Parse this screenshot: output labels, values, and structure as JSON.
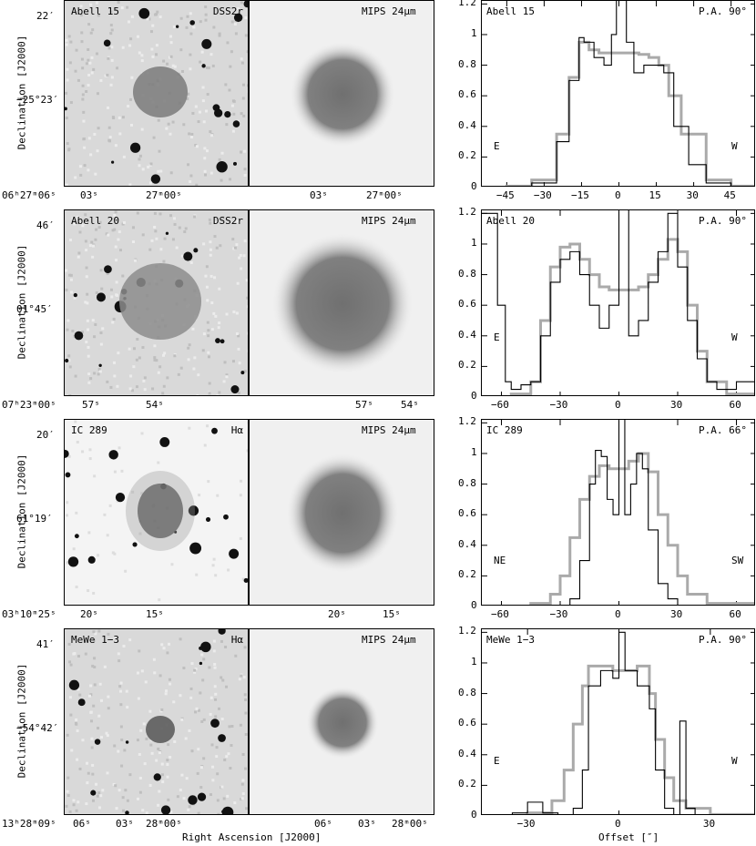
{
  "rows": [
    {
      "name": "Abell 15",
      "left_band": "DSS2r",
      "mid_band": "MIPS 24μm",
      "dec_ticks": [
        "22′",
        "−25°23′"
      ],
      "ra_ticks_left": [
        "06ʰ27ᵐ06ˢ",
        "03ˢ",
        "27ᵐ00ˢ"
      ],
      "ra_ticks_mid": [
        "03ˢ",
        "27ᵐ00ˢ"
      ],
      "pa": "P.A. 90°",
      "side_left": "E",
      "side_right": "W",
      "xticks": [
        "−45",
        "−30",
        "−15",
        "0",
        "15",
        "30",
        "45"
      ]
    },
    {
      "name": "Abell 20",
      "left_band": "DSS2r",
      "mid_band": "MIPS 24μm",
      "dec_ticks": [
        "46′",
        "01°45′"
      ],
      "ra_ticks_left": [
        "07ʰ23ᵐ00ˢ",
        "57ˢ",
        "54ˢ"
      ],
      "ra_ticks_mid": [
        "57ˢ",
        "54ˢ"
      ],
      "pa": "P.A. 90°",
      "side_left": "E",
      "side_right": "W",
      "xticks": [
        "−60",
        "−30",
        "0",
        "30",
        "60"
      ]
    },
    {
      "name": "IC 289",
      "left_band": "Hα",
      "mid_band": "MIPS 24μm",
      "dec_ticks": [
        "20′",
        "61°19′"
      ],
      "ra_ticks_left": [
        "03ʰ10ᵐ25ˢ",
        "20ˢ",
        "15ˢ"
      ],
      "ra_ticks_mid": [
        "20ˢ",
        "15ˢ"
      ],
      "pa": "P.A. 66°",
      "side_left": "NE",
      "side_right": "SW",
      "xticks": [
        "−60",
        "−30",
        "0",
        "30",
        "60"
      ]
    },
    {
      "name": "MeWe 1−3",
      "left_band": "Hα",
      "mid_band": "MIPS 24μm",
      "dec_ticks": [
        "41′",
        "−54°42′"
      ],
      "ra_ticks_left": [
        "13ʰ28ᵐ09ˢ",
        "06ˢ",
        "03ˢ",
        "28ᵐ00ˢ"
      ],
      "ra_ticks_mid": [
        "06ˢ",
        "03ˢ",
        "28ᵐ00ˢ"
      ],
      "pa": "P.A. 90°",
      "side_left": "E",
      "side_right": "W",
      "xticks": [
        "−30",
        "0",
        "30"
      ]
    }
  ],
  "labels": {
    "declination": "Declination [J2000]",
    "right_ascension": "Right Ascension [J2000]",
    "offset": "Offset [″]",
    "yticks": [
      "0",
      "0.2",
      "0.4",
      "0.6",
      "0.8",
      "1",
      "1.2"
    ]
  },
  "chart_data": [
    {
      "type": "line",
      "title": "Abell 15",
      "xlim": [
        -55,
        55
      ],
      "ylim": [
        0,
        1.22
      ],
      "series": [
        {
          "values_x": [
            -55,
            -45,
            -35,
            -25,
            -20,
            -16,
            -12,
            -8,
            -4,
            0,
            4,
            8,
            12,
            16,
            20,
            25,
            35,
            45,
            55
          ],
          "values_y": [
            0,
            0.01,
            0.05,
            0.35,
            0.72,
            0.95,
            0.9,
            0.88,
            0.88,
            0.88,
            0.88,
            0.87,
            0.85,
            0.8,
            0.6,
            0.35,
            0.05,
            0.01,
            0
          ]
        },
        {
          "values_x": [
            -55,
            -45,
            -35,
            -25,
            -20,
            -16,
            -14,
            -10,
            -6,
            -3,
            -1,
            0,
            1,
            3,
            6,
            10,
            14,
            18,
            22,
            28,
            35,
            45,
            55
          ],
          "values_y": [
            0,
            0,
            0.03,
            0.3,
            0.7,
            0.98,
            0.95,
            0.85,
            0.8,
            1.0,
            1.25,
            1.25,
            1.25,
            0.95,
            0.75,
            0.8,
            0.8,
            0.75,
            0.4,
            0.15,
            0.03,
            0,
            0
          ]
        }
      ]
    },
    {
      "type": "line",
      "title": "Abell 20",
      "xlim": [
        -70,
        70
      ],
      "ylim": [
        0,
        1.22
      ],
      "series": [
        {
          "values_x": [
            -70,
            -55,
            -45,
            -40,
            -35,
            -30,
            -25,
            -20,
            -15,
            -10,
            -5,
            0,
            5,
            10,
            15,
            20,
            25,
            30,
            35,
            40,
            45,
            55,
            70
          ],
          "values_y": [
            0,
            0.02,
            0.1,
            0.5,
            0.85,
            0.98,
            1.0,
            0.9,
            0.8,
            0.72,
            0.7,
            0.7,
            0.7,
            0.72,
            0.8,
            0.9,
            1.03,
            0.95,
            0.6,
            0.3,
            0.1,
            0.02,
            0
          ]
        },
        {
          "values_x": [
            -70,
            -62,
            -58,
            -55,
            -50,
            -45,
            -40,
            -35,
            -30,
            -25,
            -20,
            -15,
            -10,
            -5,
            0,
            5,
            10,
            15,
            20,
            25,
            30,
            35,
            40,
            45,
            50,
            60,
            70
          ],
          "values_y": [
            1.2,
            0.6,
            0.1,
            0.05,
            0.08,
            0.1,
            0.4,
            0.75,
            0.9,
            0.95,
            0.8,
            0.6,
            0.45,
            0.6,
            1.25,
            0.4,
            0.5,
            0.75,
            0.95,
            1.2,
            0.85,
            0.5,
            0.25,
            0.1,
            0.05,
            0.1,
            0.05
          ]
        }
      ]
    },
    {
      "type": "line",
      "title": "IC 289",
      "xlim": [
        -70,
        70
      ],
      "ylim": [
        0,
        1.22
      ],
      "series": [
        {
          "values_x": [
            -70,
            -45,
            -35,
            -30,
            -25,
            -20,
            -15,
            -10,
            -5,
            0,
            5,
            10,
            15,
            20,
            25,
            30,
            35,
            45,
            70
          ],
          "values_y": [
            0,
            0.02,
            0.08,
            0.2,
            0.45,
            0.7,
            0.85,
            0.92,
            0.9,
            0.9,
            0.95,
            1.0,
            0.88,
            0.6,
            0.4,
            0.2,
            0.08,
            0.02,
            0
          ]
        },
        {
          "values_x": [
            -70,
            -30,
            -25,
            -20,
            -15,
            -12,
            -9,
            -6,
            -3,
            0,
            3,
            6,
            9,
            12,
            15,
            20,
            25,
            30,
            70
          ],
          "values_y": [
            0,
            0,
            0.05,
            0.3,
            0.8,
            1.02,
            0.98,
            0.7,
            0.6,
            1.25,
            0.6,
            0.8,
            1.0,
            0.9,
            0.5,
            0.15,
            0.05,
            0,
            0
          ]
        }
      ]
    },
    {
      "type": "line",
      "title": "MeWe 1−3",
      "xlim": [
        -45,
        45
      ],
      "ylim": [
        0,
        1.22
      ],
      "series": [
        {
          "values_x": [
            -45,
            -30,
            -22,
            -18,
            -15,
            -12,
            -10,
            -6,
            -2,
            0,
            2,
            6,
            8,
            10,
            12,
            15,
            18,
            22,
            30,
            45
          ],
          "values_y": [
            0,
            0.02,
            0.1,
            0.3,
            0.6,
            0.85,
            0.98,
            0.98,
            0.95,
            0.95,
            0.95,
            0.98,
            0.98,
            0.8,
            0.5,
            0.25,
            0.1,
            0.05,
            0.01,
            0
          ]
        },
        {
          "values_x": [
            -45,
            -35,
            -30,
            -25,
            -20,
            -15,
            -12,
            -10,
            -6,
            -2,
            0,
            2,
            6,
            10,
            12,
            15,
            18,
            20,
            22,
            25,
            30,
            45
          ],
          "values_y": [
            0,
            0.02,
            0.09,
            0.02,
            0.0,
            0.05,
            0.3,
            0.85,
            0.95,
            0.9,
            1.2,
            0.95,
            0.85,
            0.7,
            0.3,
            0.05,
            0.0,
            0.62,
            0.05,
            0.0,
            0.0,
            0
          ]
        }
      ]
    }
  ]
}
